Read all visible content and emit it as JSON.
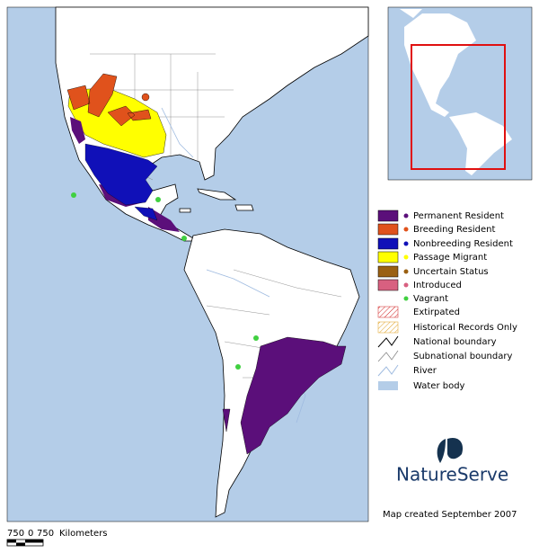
{
  "legend": {
    "items": [
      {
        "label": "Permanent Resident"
      },
      {
        "label": "Breeding Resident"
      },
      {
        "label": "Nonbreeding Resident"
      },
      {
        "label": "Passage Migrant"
      },
      {
        "label": "Uncertain Status"
      },
      {
        "label": "Introduced"
      },
      {
        "label": "Vagrant"
      },
      {
        "label": "Extirpated"
      },
      {
        "label": "Historical Records Only"
      },
      {
        "label": "National boundary"
      },
      {
        "label": "Subnational boundary"
      },
      {
        "label": "River"
      },
      {
        "label": "Water body"
      }
    ]
  },
  "scale": {
    "labels": [
      750,
      0,
      750
    ],
    "unit": "Kilometers"
  },
  "logo": "NatureServe",
  "credit": "Map created September 2007"
}
